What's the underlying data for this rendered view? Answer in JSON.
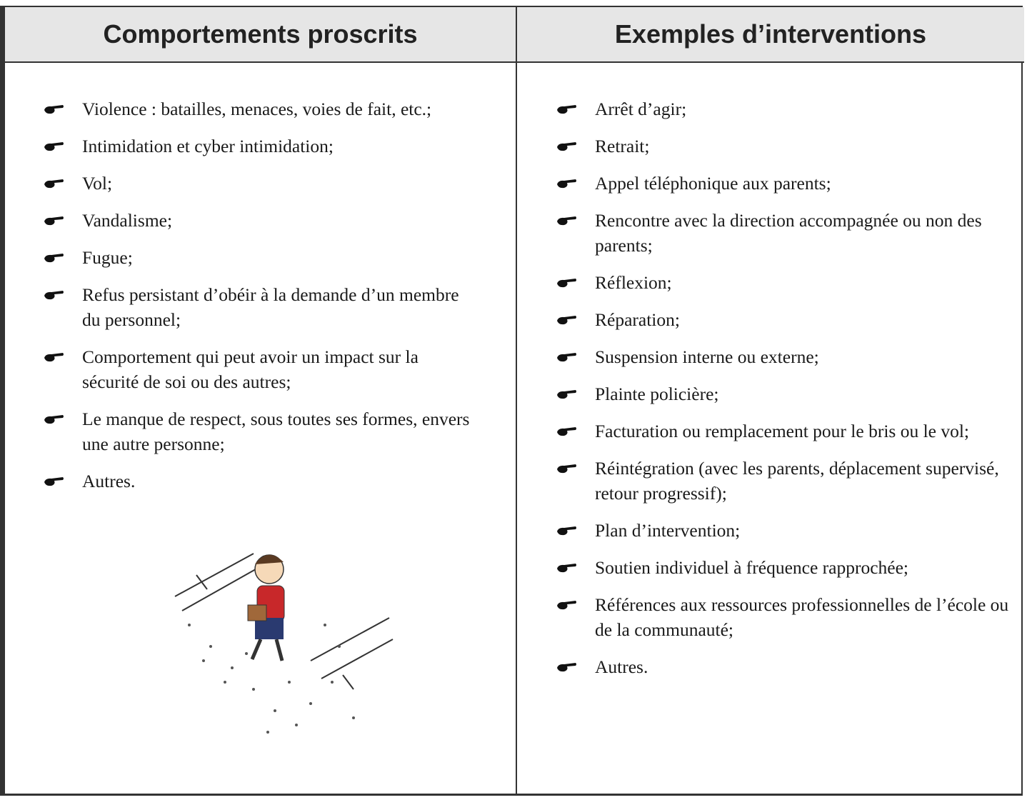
{
  "table": {
    "headers": [
      "Comportements proscrits",
      "Exemples d’interventions"
    ],
    "columns": [
      [
        "Violence : batailles, menaces, voies de fait, etc.;",
        "Intimidation et cyber intimidation;",
        "Vol;",
        "Vandalisme;",
        "Fugue;",
        "Refus persistant d’obéir à la demande d’un membre du personnel;",
        "Comportement qui peut avoir un impact sur la sécurité de soi ou des autres;",
        "Le manque de respect, sous toutes ses formes, envers une autre personne;",
        "Autres."
      ],
      [
        "Arrêt d’agir;",
        "Retrait;",
        "Appel téléphonique aux parents;",
        "Rencontre avec la direction accompagnée ou non des parents;",
        "Réflexion;",
        "Réparation;",
        "Suspension interne ou externe;",
        "Plainte policière;",
        "Facturation ou remplacement pour le bris ou le vol;",
        "Réintégration (avec les parents, déplacement supervisé, retour progressif);",
        "Plan d’intervention;",
        "Soutien individuel à fréquence rapprochée;",
        "Références aux ressources professionnelles de l’école ou de la communauté;",
        "Autres."
      ]
    ]
  }
}
